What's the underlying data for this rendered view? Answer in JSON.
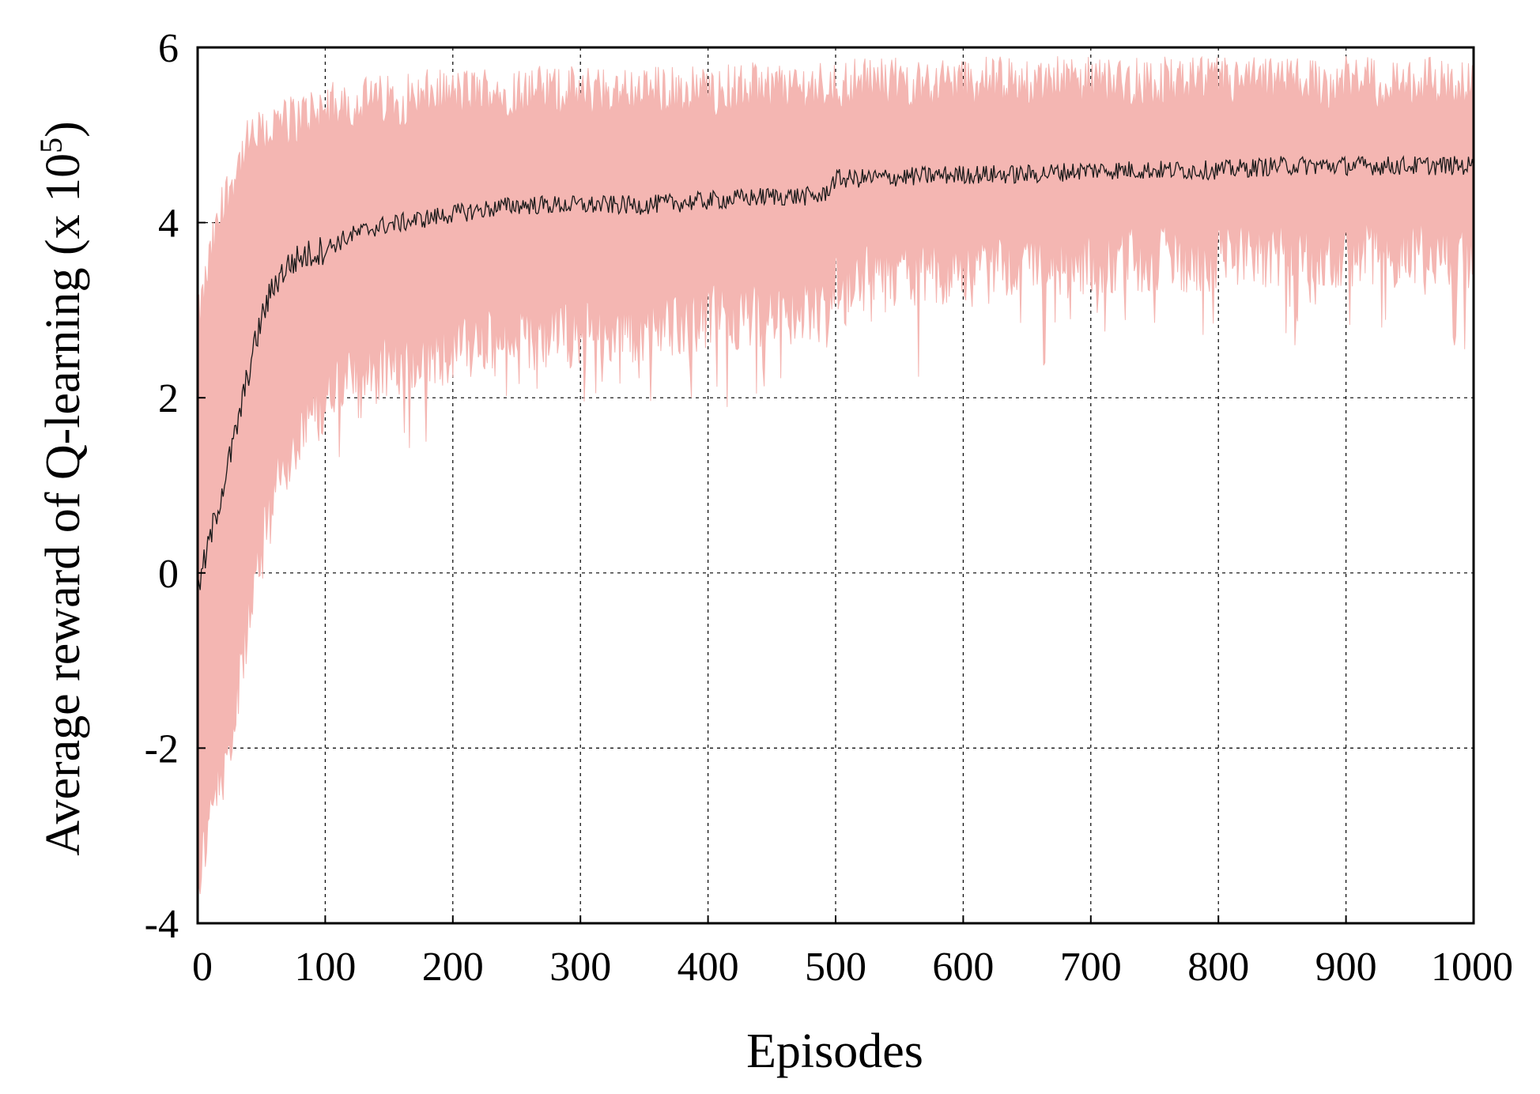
{
  "chart_data": {
    "type": "line",
    "xlabel": "Episodes",
    "ylabel": "Average reward of Q-learning (x 10",
    "ylabel_sup": "5",
    "ylabel_close": ")",
    "xlim": [
      0,
      1000
    ],
    "ylim": [
      -4,
      6
    ],
    "x_ticks": [
      0,
      100,
      200,
      300,
      400,
      500,
      600,
      700,
      800,
      900,
      1000
    ],
    "x_tick_labels": [
      "0",
      "100",
      "200",
      "300",
      "400",
      "500",
      "600",
      "700",
      "800",
      "900",
      "1000"
    ],
    "y_ticks": [
      -4,
      -2,
      0,
      2,
      4,
      6
    ],
    "y_tick_labels": [
      "-4",
      "-2",
      "0",
      "2",
      "4",
      "6"
    ],
    "grid": true,
    "colors": {
      "band": "#f4b6b2",
      "line": "#1a1a1a"
    },
    "series": [
      {
        "role": "mean",
        "x": [
          0,
          10,
          20,
          30,
          40,
          50,
          60,
          70,
          80,
          90,
          100,
          120,
          140,
          160,
          180,
          200,
          225,
          250,
          275,
          300,
          350,
          400,
          450,
          490,
          500,
          510,
          550,
          600,
          650,
          700,
          750,
          800,
          850,
          900,
          950,
          1000
        ],
        "values": [
          -0.2,
          0.4,
          1.0,
          1.6,
          2.3,
          2.9,
          3.3,
          3.5,
          3.6,
          3.65,
          3.7,
          3.85,
          3.95,
          4.0,
          4.05,
          4.1,
          4.15,
          4.2,
          4.2,
          4.2,
          4.2,
          4.25,
          4.3,
          4.3,
          4.5,
          4.5,
          4.52,
          4.55,
          4.55,
          4.6,
          4.6,
          4.6,
          4.65,
          4.65,
          4.65,
          4.65
        ]
      },
      {
        "role": "band",
        "x": [
          0,
          10,
          20,
          30,
          40,
          50,
          60,
          70,
          80,
          90,
          100,
          120,
          140,
          160,
          180,
          200,
          225,
          250,
          275,
          300,
          350,
          400,
          450,
          490,
          500,
          510,
          550,
          600,
          650,
          700,
          750,
          800,
          850,
          900,
          950,
          1000
        ],
        "upper": [
          2.8,
          3.6,
          4.2,
          4.6,
          4.9,
          5.0,
          5.1,
          5.15,
          5.2,
          5.25,
          5.3,
          5.35,
          5.4,
          5.4,
          5.45,
          5.45,
          5.5,
          5.5,
          5.5,
          5.5,
          5.5,
          5.5,
          5.55,
          5.55,
          5.6,
          5.6,
          5.6,
          5.6,
          5.6,
          5.6,
          5.6,
          5.6,
          5.6,
          5.6,
          5.6,
          5.6
        ],
        "lower": [
          -3.5,
          -2.8,
          -2.2,
          -1.5,
          -0.6,
          0.3,
          0.9,
          1.3,
          1.6,
          1.8,
          2.0,
          2.2,
          2.3,
          2.4,
          2.5,
          2.55,
          2.6,
          2.65,
          2.7,
          2.75,
          2.8,
          2.9,
          3.0,
          3.0,
          3.3,
          3.35,
          3.4,
          3.45,
          3.5,
          3.55,
          3.6,
          3.6,
          3.65,
          3.65,
          3.65,
          3.65
        ]
      }
    ]
  }
}
